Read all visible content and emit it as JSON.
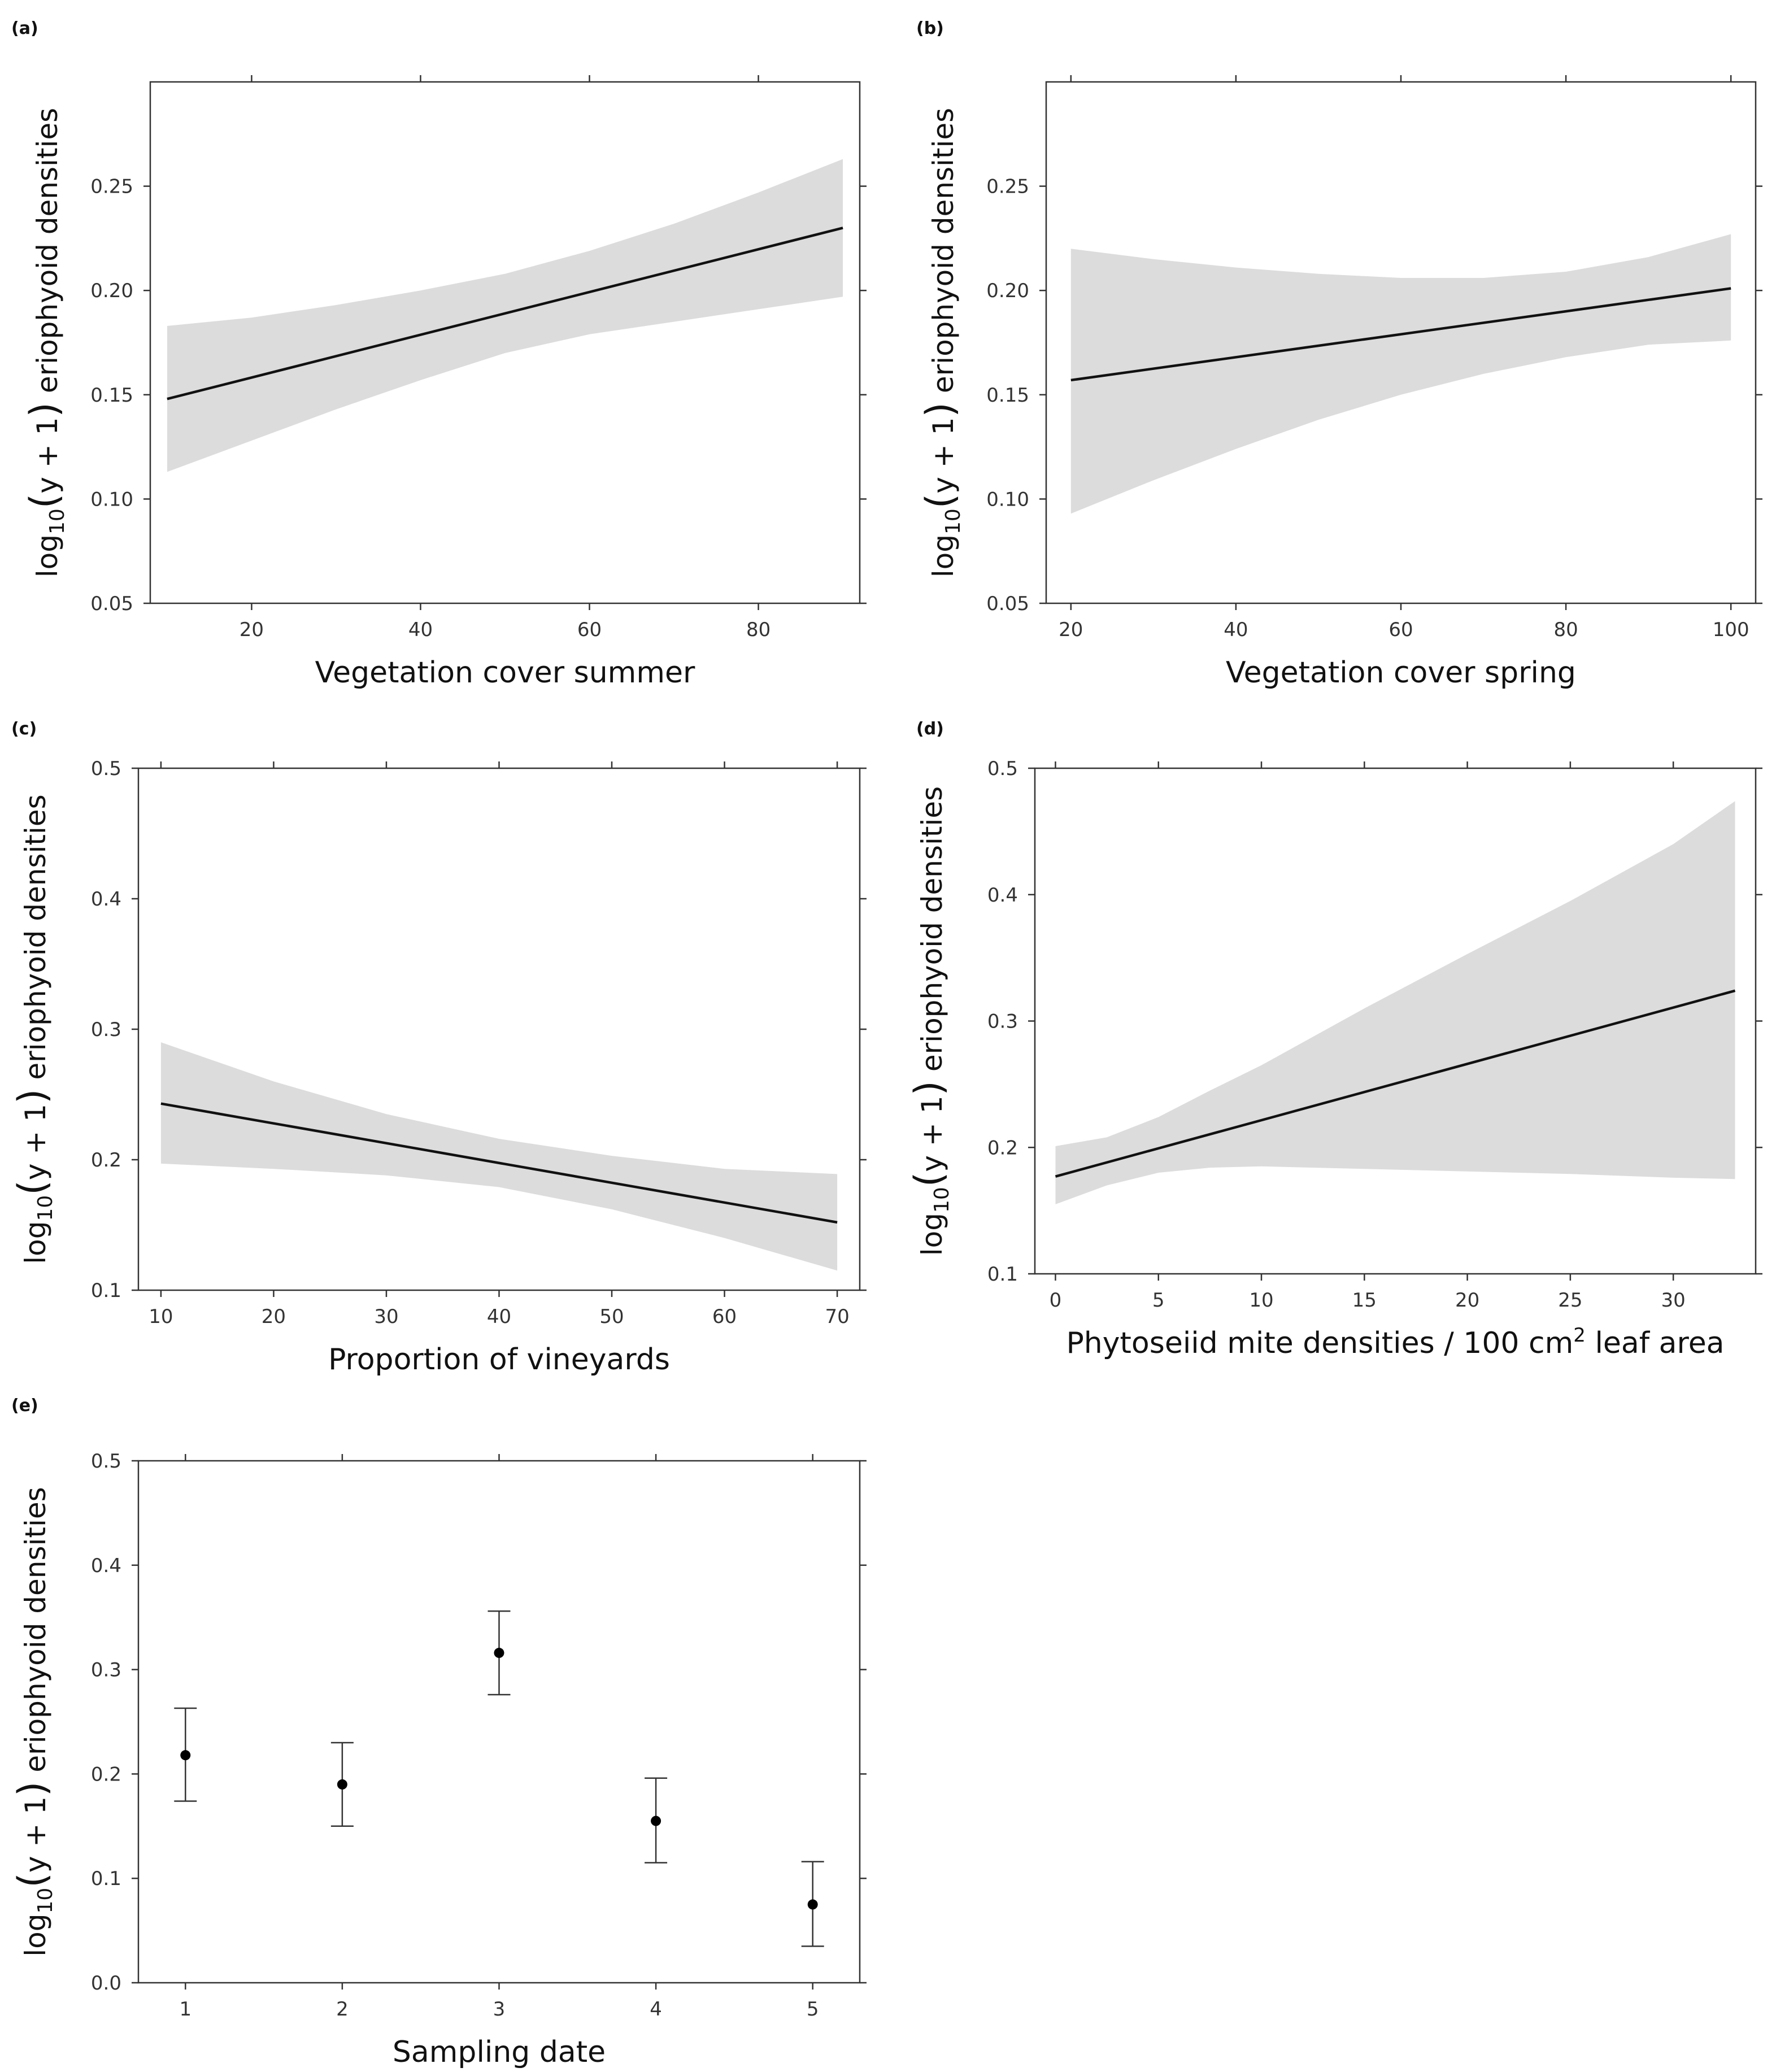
{
  "chart_data": [
    {
      "id": "a",
      "panel_label": "(a)",
      "type": "line",
      "xlabel": "Vegetation cover summer",
      "xlabel_sup": "",
      "xlabel_tail": "",
      "ylabel": {
        "prefix": "log",
        "sub": "10",
        "paren_open": "(",
        "inner": "y + 1",
        "paren_close": ")",
        "suffix": " eriophyoid densities"
      },
      "xlim": [
        8,
        92
      ],
      "ylim": [
        0.05,
        0.3
      ],
      "xticks": [
        20,
        40,
        60,
        80
      ],
      "xtick_labels": [
        "20",
        "40",
        "60",
        "80"
      ],
      "yticks": [
        0.05,
        0.1,
        0.15,
        0.2,
        0.25
      ],
      "ytick_labels": [
        "0.05",
        "0.10",
        "0.15",
        "0.20",
        "0.25"
      ],
      "fit": {
        "x": [
          10,
          90
        ],
        "y": [
          0.148,
          0.23
        ]
      },
      "band": {
        "x": [
          10,
          20,
          30,
          40,
          50,
          60,
          70,
          80,
          90
        ],
        "upper": [
          0.183,
          0.187,
          0.193,
          0.2,
          0.208,
          0.219,
          0.232,
          0.247,
          0.263
        ],
        "lower": [
          0.113,
          0.128,
          0.143,
          0.157,
          0.17,
          0.179,
          0.185,
          0.191,
          0.197
        ]
      }
    },
    {
      "id": "b",
      "panel_label": "(b)",
      "type": "line",
      "xlabel": "Vegetation cover spring",
      "xlabel_sup": "",
      "xlabel_tail": "",
      "ylabel": {
        "prefix": "log",
        "sub": "10",
        "paren_open": "(",
        "inner": "y + 1",
        "paren_close": ")",
        "suffix": " eriophyoid densities"
      },
      "xlim": [
        17,
        103
      ],
      "ylim": [
        0.05,
        0.3
      ],
      "xticks": [
        20,
        40,
        60,
        80,
        100
      ],
      "xtick_labels": [
        "20",
        "40",
        "60",
        "80",
        "100"
      ],
      "yticks": [
        0.05,
        0.1,
        0.15,
        0.2,
        0.25
      ],
      "ytick_labels": [
        "0.05",
        "0.10",
        "0.15",
        "0.20",
        "0.25"
      ],
      "fit": {
        "x": [
          20,
          100
        ],
        "y": [
          0.157,
          0.201
        ]
      },
      "band": {
        "x": [
          20,
          30,
          40,
          50,
          60,
          70,
          80,
          90,
          100
        ],
        "upper": [
          0.22,
          0.215,
          0.211,
          0.208,
          0.206,
          0.206,
          0.209,
          0.216,
          0.227
        ],
        "lower": [
          0.093,
          0.109,
          0.124,
          0.138,
          0.15,
          0.16,
          0.168,
          0.174,
          0.176
        ]
      }
    },
    {
      "id": "c",
      "panel_label": "(c)",
      "type": "line",
      "xlabel": "Proportion of vineyards",
      "xlabel_sup": "",
      "xlabel_tail": "",
      "ylabel": {
        "prefix": "log",
        "sub": "10",
        "paren_open": "(",
        "inner": "y + 1",
        "paren_close": ")",
        "suffix": " eriophyoid densities"
      },
      "xlim": [
        8,
        72
      ],
      "ylim": [
        0.1,
        0.5
      ],
      "xticks": [
        10,
        20,
        30,
        40,
        50,
        60,
        70
      ],
      "xtick_labels": [
        "10",
        "20",
        "30",
        "40",
        "50",
        "60",
        "70"
      ],
      "yticks": [
        0.1,
        0.2,
        0.3,
        0.4,
        0.5
      ],
      "ytick_labels": [
        "0.1",
        "0.2",
        "0.3",
        "0.4",
        "0.5"
      ],
      "fit": {
        "x": [
          10,
          70
        ],
        "y": [
          0.243,
          0.152
        ]
      },
      "band": {
        "x": [
          10,
          20,
          30,
          40,
          50,
          60,
          70
        ],
        "upper": [
          0.29,
          0.26,
          0.235,
          0.216,
          0.203,
          0.193,
          0.189
        ],
        "lower": [
          0.197,
          0.193,
          0.188,
          0.179,
          0.162,
          0.14,
          0.115
        ]
      }
    },
    {
      "id": "d",
      "panel_label": "(d)",
      "type": "line",
      "xlabel": "Phytoseiid mite densities  / 100 cm",
      "xlabel_sup": "2",
      "xlabel_tail": " leaf area",
      "ylabel": {
        "prefix": "log",
        "sub": "10",
        "paren_open": "(",
        "inner": "y + 1",
        "paren_close": ")",
        "suffix": " eriophyoid densities"
      },
      "xlim": [
        -1,
        34
      ],
      "ylim": [
        0.1,
        0.5
      ],
      "xticks": [
        0,
        5,
        10,
        15,
        20,
        25,
        30
      ],
      "xtick_labels": [
        "0",
        "5",
        "10",
        "15",
        "20",
        "25",
        "30"
      ],
      "yticks": [
        0.1,
        0.2,
        0.3,
        0.4,
        0.5
      ],
      "ytick_labels": [
        "0.1",
        "0.2",
        "0.3",
        "0.4",
        "0.5"
      ],
      "fit": {
        "x": [
          0,
          33
        ],
        "y": [
          0.177,
          0.324
        ]
      },
      "band": {
        "x": [
          0,
          2.5,
          5,
          7.5,
          10,
          15,
          20,
          25,
          30,
          33
        ],
        "upper": [
          0.201,
          0.208,
          0.224,
          0.245,
          0.265,
          0.31,
          0.353,
          0.395,
          0.44,
          0.474
        ],
        "lower": [
          0.155,
          0.17,
          0.18,
          0.184,
          0.185,
          0.183,
          0.181,
          0.179,
          0.176,
          0.175
        ]
      }
    },
    {
      "id": "e",
      "panel_label": "(e)",
      "type": "scatter",
      "xlabel": "Sampling date",
      "xlabel_sup": "",
      "xlabel_tail": "",
      "ylabel": {
        "prefix": "log",
        "sub": "10",
        "paren_open": "(",
        "inner": "y + 1",
        "paren_close": ")",
        "suffix": " eriophyoid densities"
      },
      "xlim": [
        0.7,
        5.3
      ],
      "ylim": [
        0.0,
        0.5
      ],
      "xticks": [
        1,
        2,
        3,
        4,
        5
      ],
      "xtick_labels": [
        "1",
        "2",
        "3",
        "4",
        "5"
      ],
      "yticks": [
        0.0,
        0.1,
        0.2,
        0.3,
        0.4,
        0.5
      ],
      "ytick_labels": [
        "0.0",
        "0.1",
        "0.2",
        "0.3",
        "0.4",
        "0.5"
      ],
      "points": [
        {
          "x": 1,
          "y": 0.218,
          "lower": 0.174,
          "upper": 0.263
        },
        {
          "x": 2,
          "y": 0.19,
          "lower": 0.15,
          "upper": 0.23
        },
        {
          "x": 3,
          "y": 0.316,
          "lower": 0.276,
          "upper": 0.356
        },
        {
          "x": 4,
          "y": 0.155,
          "lower": 0.115,
          "upper": 0.196
        },
        {
          "x": 5,
          "y": 0.075,
          "lower": 0.035,
          "upper": 0.116
        }
      ]
    }
  ]
}
